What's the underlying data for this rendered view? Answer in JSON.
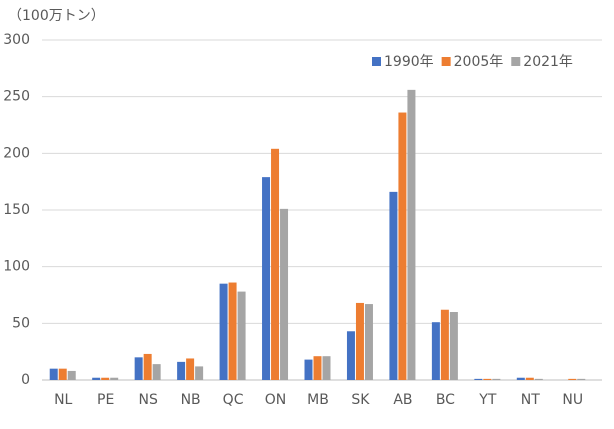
{
  "chart_data": {
    "type": "bar",
    "y_label": "（100万トン）",
    "categories": [
      "NL",
      "PE",
      "NS",
      "NB",
      "QC",
      "ON",
      "MB",
      "SK",
      "AB",
      "BC",
      "YT",
      "NT",
      "NU"
    ],
    "series": [
      {
        "name": "1990年",
        "color": "#4472c4",
        "values": [
          10,
          2,
          20,
          16,
          85,
          179,
          18,
          43,
          166,
          51,
          1,
          2,
          null
        ]
      },
      {
        "name": "2005年",
        "color": "#ed7d31",
        "values": [
          10,
          2,
          23,
          19,
          86,
          204,
          21,
          68,
          236,
          62,
          1,
          2,
          1
        ]
      },
      {
        "name": "2021年",
        "color": "#a5a5a5",
        "values": [
          8,
          2,
          14,
          12,
          78,
          151,
          21,
          67,
          256,
          60,
          1,
          1,
          1
        ]
      }
    ],
    "ylim": [
      0,
      300
    ],
    "yticks": [
      0,
      50,
      100,
      150,
      200,
      250,
      300
    ],
    "grid": true,
    "legend": "top-right"
  }
}
